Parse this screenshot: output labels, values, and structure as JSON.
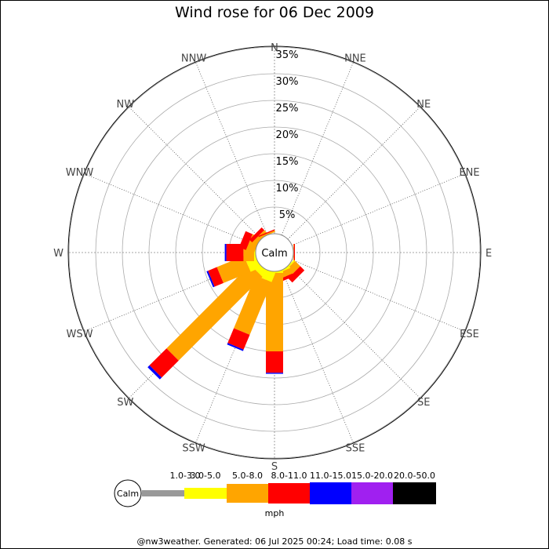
{
  "chart_data": {
    "type": "wind-rose",
    "title": "Wind rose for 06 Dec 2009",
    "directions": [
      "N",
      "NNE",
      "NE",
      "ENE",
      "E",
      "ESE",
      "SE",
      "SSE",
      "S",
      "SSW",
      "SW",
      "WSW",
      "W",
      "WNW",
      "NW",
      "NNW"
    ],
    "radial_ticks": [
      "5%",
      "10%",
      "15%",
      "20%",
      "25%",
      "30%",
      "35%"
    ],
    "radial_max": 35,
    "calm_label": "Calm",
    "speed_bins": [
      {
        "label": "1.0-3.0",
        "color": "#999999"
      },
      {
        "label": "3.0-5.0",
        "color": "#ffff00"
      },
      {
        "label": "5.0-8.0",
        "color": "#ffa500"
      },
      {
        "label": "8.0-11.0",
        "color": "#ff0000"
      },
      {
        "label": "11.0-15.0",
        "color": "#0000ff"
      },
      {
        "label": "15.0-20.0",
        "color": "#a020f0"
      },
      {
        "label": "20.0-50.0",
        "color": "#000000"
      }
    ],
    "series_cumulative_percent": [
      {
        "direction": "N",
        "values": [
          0.0,
          0.0,
          0.0,
          0.0,
          0.0,
          0.0,
          0.0
        ]
      },
      {
        "direction": "NNE",
        "values": [
          0.0,
          0.0,
          0.0,
          0.0,
          0.0,
          0.0,
          0.0
        ]
      },
      {
        "direction": "NE",
        "values": [
          0.0,
          0.0,
          0.0,
          0.0,
          0.0,
          0.0,
          0.0
        ]
      },
      {
        "direction": "ENE",
        "values": [
          0.0,
          0.0,
          0.0,
          0.0,
          0.0,
          0.0,
          0.0
        ]
      },
      {
        "direction": "E",
        "values": [
          0.0,
          0.0,
          0.1,
          0.3,
          0.3,
          0.3,
          0.3
        ]
      },
      {
        "direction": "ESE",
        "values": [
          0.0,
          0.0,
          0.0,
          0.0,
          0.0,
          0.0,
          0.0
        ]
      },
      {
        "direction": "SE",
        "values": [
          0.0,
          0.3,
          1.7,
          2.8,
          2.8,
          2.8,
          2.8
        ]
      },
      {
        "direction": "SSE",
        "values": [
          0.0,
          0.3,
          1.4,
          2.0,
          2.0,
          2.0,
          2.0
        ]
      },
      {
        "direction": "S",
        "values": [
          0.0,
          0.3,
          15.0,
          19.0,
          19.2,
          19.2,
          19.2
        ]
      },
      {
        "direction": "SSW",
        "values": [
          0.0,
          1.8,
          12.5,
          15.5,
          15.8,
          15.8,
          15.8
        ]
      },
      {
        "direction": "SW",
        "values": [
          0.0,
          1.3,
          23.5,
          28.0,
          28.5,
          28.5,
          28.5
        ]
      },
      {
        "direction": "WSW",
        "values": [
          0.0,
          2.0,
          7.5,
          9.3,
          9.6,
          9.6,
          9.6
        ]
      },
      {
        "direction": "W",
        "values": [
          0.0,
          0.3,
          2.3,
          5.5,
          5.8,
          5.8,
          5.8
        ]
      },
      {
        "direction": "WNW",
        "values": [
          0.0,
          0.0,
          1.6,
          3.0,
          3.0,
          3.0,
          3.0
        ]
      },
      {
        "direction": "NW",
        "values": [
          0.0,
          0.0,
          0.8,
          1.5,
          1.5,
          1.5,
          1.5
        ]
      },
      {
        "direction": "NNW",
        "values": [
          0.0,
          0.0,
          0.3,
          0.5,
          0.5,
          0.5,
          0.5
        ]
      }
    ],
    "legend_unit": "mph",
    "legend_calm": "Calm"
  },
  "footer": "@nw3weather. Generated: 06 Jul 2025 00:24; Load time: 0.08 s"
}
